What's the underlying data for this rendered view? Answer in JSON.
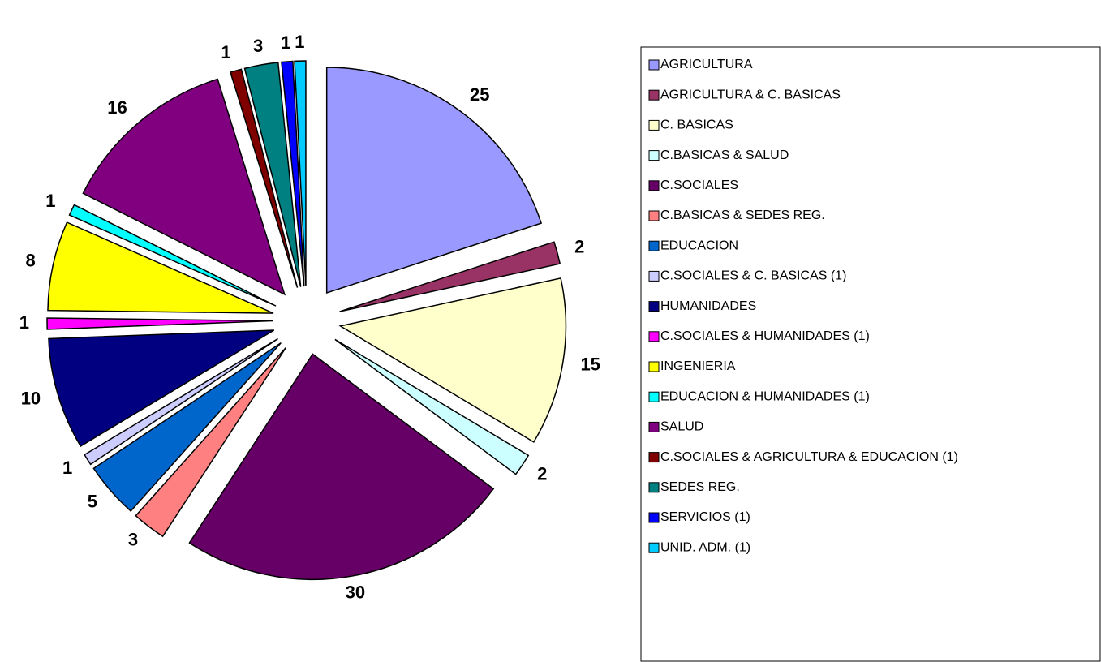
{
  "chart_data": {
    "type": "pie",
    "categories": [
      "AGRICULTURA",
      "AGRICULTURA & C. BASICAS",
      "C. BASICAS",
      "C.BASICAS & SALUD",
      "C.SOCIALES",
      "C.BASICAS & SEDES REG.",
      "EDUCACION",
      "C.SOCIALES & C. BASICAS (1)",
      "HUMANIDADES",
      "C.SOCIALES & HUMANIDADES (1)",
      "INGENIERIA",
      "EDUCACION & HUMANIDADES (1)",
      "SALUD",
      "C.SOCIALES & AGRICULTURA & EDUCACION (1)",
      "SEDES REG.",
      "SERVICIOS (1)",
      "UNID. ADM. (1)"
    ],
    "values": [
      25,
      2,
      15,
      2,
      30,
      3,
      5,
      1,
      10,
      1,
      8,
      1,
      16,
      1,
      3,
      1,
      1
    ],
    "colors": [
      "#9999ff",
      "#993366",
      "#ffffcc",
      "#ccffff",
      "#660066",
      "#ff8080",
      "#0066cc",
      "#ccccff",
      "#000080",
      "#ff00ff",
      "#ffff00",
      "#00ffff",
      "#800080",
      "#800000",
      "#008080",
      "#0000ff",
      "#00ccff"
    ],
    "legend": "right"
  }
}
